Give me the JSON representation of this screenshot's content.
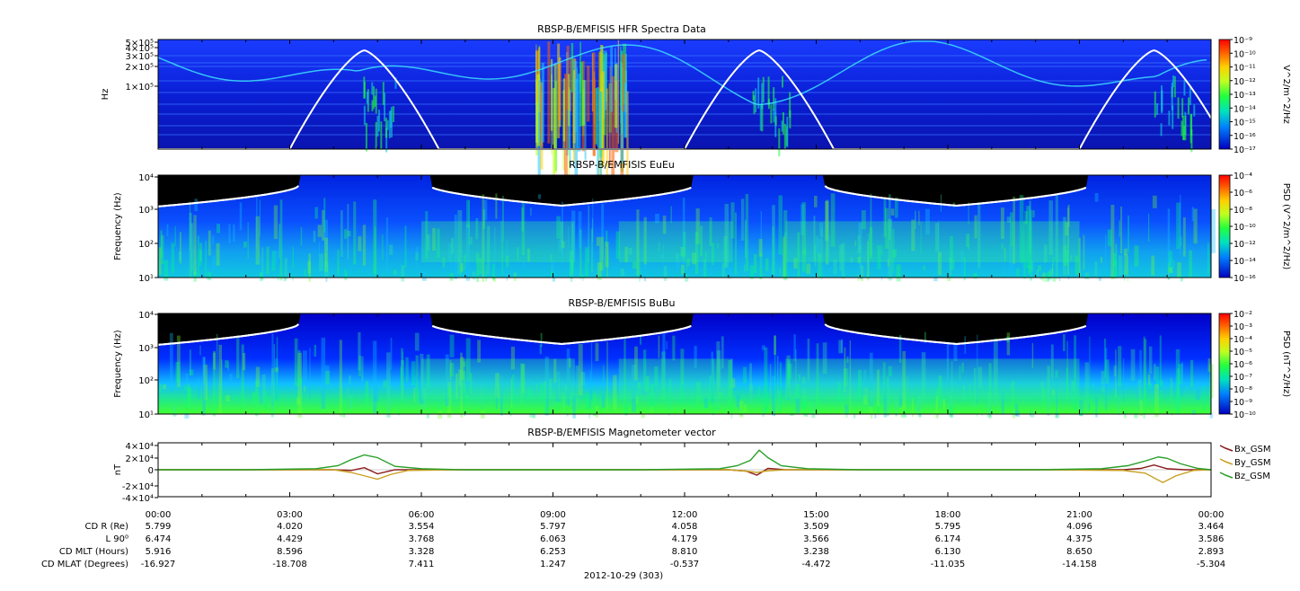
{
  "chart_data": [
    {
      "type": "heatmap",
      "title": "RBSP-B/EMFISIS  HFR Spectra Data",
      "ylabel": "Hz",
      "yscale": "log",
      "y_tick_labels": [
        "5×10⁵",
        "4×10⁵",
        "3×10⁵",
        "2×10⁵",
        "1×10⁵"
      ],
      "colorbar": {
        "label": "V^2/m^2/Hz",
        "scale": "log",
        "tick_labels": [
          "10⁻⁹",
          "10⁻¹⁰",
          "10⁻¹¹",
          "10⁻¹²",
          "10⁻¹³",
          "10⁻¹⁴",
          "10⁻¹⁵",
          "10⁻¹⁶",
          "10⁻¹⁷"
        ]
      }
    },
    {
      "type": "heatmap",
      "title": "RBSP-B/EMFISIS  EuEu",
      "ylabel": "Frequency (Hz)",
      "yscale": "log",
      "ylim": [
        10,
        10000
      ],
      "y_tick_labels": [
        "10⁴",
        "10³",
        "10²",
        "10¹"
      ],
      "colorbar": {
        "label": "PSD (V^2/m^2/Hz)",
        "scale": "log",
        "tick_labels": [
          "10⁻⁴",
          "10⁻⁶",
          "10⁻⁸",
          "10⁻¹⁰",
          "10⁻¹²",
          "10⁻¹⁴",
          "10⁻¹⁶"
        ]
      }
    },
    {
      "type": "heatmap",
      "title": "RBSP-B/EMFISIS  BuBu",
      "ylabel": "Frequency (Hz)",
      "yscale": "log",
      "ylim": [
        10,
        10000
      ],
      "y_tick_labels": [
        "10⁴",
        "10³",
        "10²",
        "10¹"
      ],
      "colorbar": {
        "label": "PSD (nT^2/Hz)",
        "scale": "log",
        "tick_labels": [
          "10⁻²",
          "10⁻³",
          "10⁻⁴",
          "10⁻⁵",
          "10⁻⁶",
          "10⁻⁷",
          "10⁻⁸",
          "10⁻⁹",
          "10⁻¹⁰"
        ]
      }
    },
    {
      "type": "line",
      "title": "RBSP-B/EMFISIS  Magnetometer vector",
      "ylabel": "nT",
      "ylim": [
        -40000,
        40000
      ],
      "y_tick_labels": [
        "4×10⁴",
        "2×10⁴",
        "0",
        "-2×10⁴",
        "-4×10⁴"
      ],
      "x_unit": "hours since 2012-10-29 00:00",
      "xlim": [
        0,
        24
      ],
      "series": [
        {
          "name": "Bx_GSM",
          "color": "#8b1a1a",
          "x": [
            0,
            2,
            4,
            4.4,
            4.7,
            5.0,
            5.4,
            7,
            11,
            13,
            13.4,
            13.65,
            13.9,
            14.3,
            16,
            20,
            22,
            22.4,
            22.7,
            23.0,
            23.4,
            24
          ],
          "y": [
            0,
            0,
            0,
            -1000,
            3000,
            -6000,
            0,
            0,
            0,
            0,
            -2000,
            -8000,
            2000,
            0,
            0,
            0,
            0,
            2000,
            7000,
            1500,
            0,
            0
          ]
        },
        {
          "name": "By_GSM",
          "color": "#c8a020",
          "x": [
            0,
            2,
            4,
            4.4,
            4.7,
            5.0,
            5.3,
            5.7,
            7,
            11,
            13,
            13.4,
            13.65,
            13.9,
            14.3,
            16,
            20,
            22,
            22.5,
            22.9,
            23.2,
            23.6,
            24
          ],
          "y": [
            0,
            0,
            0,
            -4000,
            -9000,
            -14000,
            -7000,
            -1000,
            0,
            0,
            0,
            -2000,
            -4000,
            -1500,
            0,
            0,
            0,
            -1000,
            -5000,
            -19000,
            -9000,
            -1000,
            0
          ]
        },
        {
          "name": "Bz_GSM",
          "color": "#2aa02a",
          "x": [
            0,
            2,
            3.6,
            4.1,
            4.4,
            4.7,
            5.0,
            5.4,
            6.0,
            7,
            11,
            12.8,
            13.2,
            13.5,
            13.7,
            13.9,
            14.2,
            14.8,
            16,
            20,
            21.5,
            22.1,
            22.5,
            22.8,
            23.0,
            23.3,
            23.7,
            24
          ],
          "y": [
            0,
            0,
            1500,
            6000,
            15000,
            22000,
            18000,
            5000,
            1500,
            0,
            0,
            1500,
            6000,
            14000,
            29000,
            18000,
            6000,
            1500,
            0,
            0,
            1500,
            6000,
            13000,
            19000,
            17000,
            9000,
            2000,
            0
          ]
        }
      ]
    }
  ],
  "x_tick_labels": [
    "00:00",
    "03:00",
    "06:00",
    "09:00",
    "12:00",
    "15:00",
    "18:00",
    "21:00",
    "00:00"
  ],
  "ephemeris": [
    {
      "label": "CD R (Re)",
      "values": [
        "5.799",
        "4.020",
        "3.554",
        "5.797",
        "4.058",
        "3.509",
        "5.795",
        "4.096",
        "3.464"
      ]
    },
    {
      "label": "L 90⁰",
      "values": [
        "6.474",
        "4.429",
        "3.768",
        "6.063",
        "4.179",
        "3.566",
        "6.174",
        "4.375",
        "3.586"
      ]
    },
    {
      "label": "CD MLT (Hours)",
      "values": [
        "5.916",
        "8.596",
        "3.328",
        "6.253",
        "8.810",
        "3.238",
        "6.130",
        "8.650",
        "2.893"
      ]
    },
    {
      "label": "CD MLAT (Degrees)",
      "values": [
        "-16.927",
        "-18.708",
        "7.411",
        "1.247",
        "-0.537",
        "-4.472",
        "-11.035",
        "-14.158",
        "-5.304"
      ]
    }
  ],
  "date_label": "2012-10-29 (303)"
}
